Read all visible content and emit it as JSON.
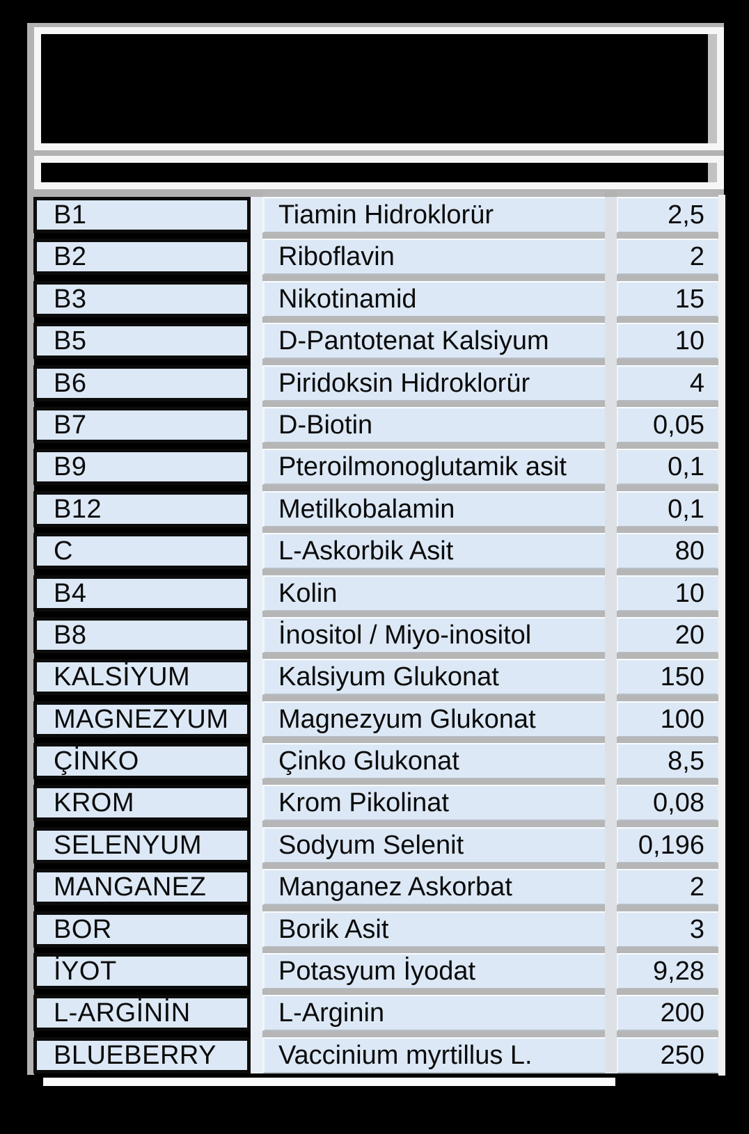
{
  "colors": {
    "page_bg": "#000000",
    "panel_face": "#000000",
    "panel_border": "#f6f6f6",
    "shadow_gray": "#b2b2b2",
    "cell_bg": "#dce8f5",
    "cell_border": "#0c0c0c",
    "text": "#0b0b0b",
    "highlight": "#fbfdff"
  },
  "table": {
    "rows": [
      {
        "code": "B1",
        "name": "Tiamin Hidroklorür",
        "amount": "2,5"
      },
      {
        "code": "B2",
        "name": "Riboflavin",
        "amount": "2"
      },
      {
        "code": "B3",
        "name": "Nikotinamid",
        "amount": "15"
      },
      {
        "code": "B5",
        "name": "D-Pantotenat Kalsiyum",
        "amount": "10"
      },
      {
        "code": "B6",
        "name": "Piridoksin Hidroklorür",
        "amount": "4"
      },
      {
        "code": "B7",
        "name": "D-Biotin",
        "amount": "0,05"
      },
      {
        "code": "B9",
        "name": "Pteroilmonoglutamik asit",
        "amount": "0,1"
      },
      {
        "code": "B12",
        "name": "Metilkobalamin",
        "amount": "0,1"
      },
      {
        "code": "C",
        "name": "L-Askorbik Asit",
        "amount": "80"
      },
      {
        "code": "B4",
        "name": "Kolin",
        "amount": "10"
      },
      {
        "code": "B8",
        "name": "İnositol / Miyo-inositol",
        "amount": "20"
      },
      {
        "code": "KALSİYUM",
        "name": "Kalsiyum Glukonat",
        "amount": "150"
      },
      {
        "code": "MAGNEZYUM",
        "name": "Magnezyum Glukonat",
        "amount": "100"
      },
      {
        "code": "ÇİNKO",
        "name": "Çinko Glukonat",
        "amount": "8,5"
      },
      {
        "code": "KROM",
        "name": "Krom Pikolinat",
        "amount": "0,08"
      },
      {
        "code": "SELENYUM",
        "name": "Sodyum Selenit",
        "amount": "0,196"
      },
      {
        "code": "MANGANEZ",
        "name": "Manganez Askorbat",
        "amount": "2"
      },
      {
        "code": "BOR",
        "name": "Borik Asit",
        "amount": "3"
      },
      {
        "code": "İYOT",
        "name": "Potasyum İyodat",
        "amount": "9,28"
      },
      {
        "code": "L-ARGİNİN",
        "name": "L-Arginin",
        "amount": "200"
      },
      {
        "code": "BLUEBERRY",
        "name": "Vaccinium myrtillus L.",
        "amount": "250"
      }
    ]
  }
}
